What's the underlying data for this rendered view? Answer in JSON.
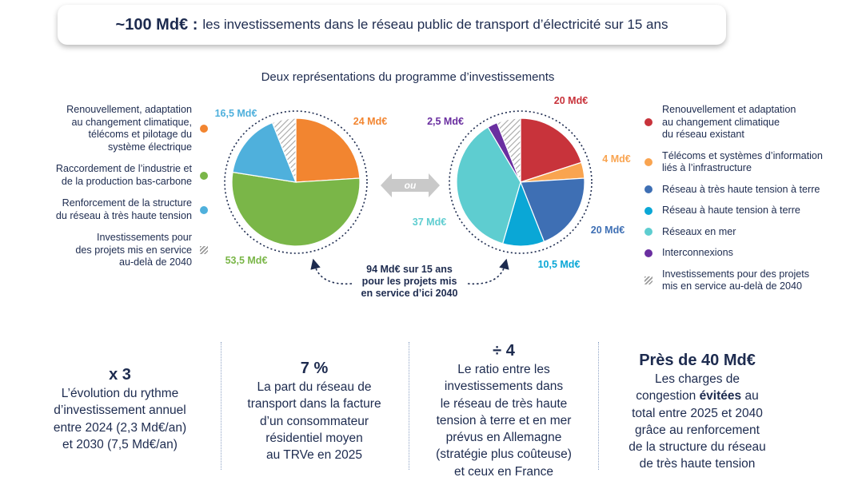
{
  "header": {
    "highlight": "~100 Md€ :",
    "text": "les investissements dans le réseau public de transport d’électricité sur 15 ans"
  },
  "subtitle": "Deux représentations du programme d’investissements",
  "or_label": "ou",
  "center_note": [
    "94 Md€ sur 15 ans",
    "pour les projets mis",
    "en service d’ici 2040"
  ],
  "legend_left": [
    {
      "label": "Renouvellement, adaptation\nau changement climatique,\ntélécoms et pilotage du\nsystème électrique",
      "color": "#f28530"
    },
    {
      "label": "Raccordement de l’industrie et\nde la production bas-carbone",
      "color": "#7ab648"
    },
    {
      "label": "Renforcement de la structure\ndu réseau à très haute tension",
      "color": "#4fb0dc"
    },
    {
      "label": "Investissements pour\ndes projets mis en service\nau-delà de 2040",
      "color": "hatch"
    }
  ],
  "legend_right": [
    {
      "label": "Renouvellement et adaptation\nau changement climatique\ndu réseau existant",
      "color": "#c8333b"
    },
    {
      "label": "Télécoms et systèmes d’information\nliés à l’infrastructure",
      "color": "#f9a450"
    },
    {
      "label": "Réseau à très haute tension à terre",
      "color": "#3e6fb4"
    },
    {
      "label": "Réseau à haute tension à terre",
      "color": "#0aa7d6"
    },
    {
      "label": "Réseaux en mer",
      "color": "#5ecdd0"
    },
    {
      "label": "Interconnexions",
      "color": "#6a2fa0"
    },
    {
      "label": "Investissements pour des projets\nmis en service au-delà de 2040",
      "color": "hatch"
    }
  ],
  "chart_data": [
    {
      "type": "pie",
      "slices": [
        {
          "label": "Renouvellement, adaptation au changement climatique, télécoms et pilotage du système électrique",
          "value": 24,
          "value_label": "24 Md€",
          "color": "#f28530"
        },
        {
          "label": "Raccordement de l’industrie et de la production bas-carbone",
          "value": 53.5,
          "value_label": "53,5 Md€",
          "color": "#7ab648"
        },
        {
          "label": "Renforcement de la structure du réseau à très haute tension",
          "value": 16.5,
          "value_label": "16,5 Md€",
          "color": "#4fb0dc"
        },
        {
          "label": "Investissements pour des projets mis en service au-delà de 2040",
          "value": 6,
          "value_label": "",
          "color": "hatch"
        }
      ]
    },
    {
      "type": "pie",
      "slices": [
        {
          "label": "Renouvellement et adaptation au changement climatique du réseau existant",
          "value": 20,
          "value_label": "20 Md€",
          "color": "#c8333b"
        },
        {
          "label": "Télécoms et systèmes d’information liés à l’infrastructure",
          "value": 4,
          "value_label": "4 Md€",
          "color": "#f9a450"
        },
        {
          "label": "Réseau à très haute tension à terre",
          "value": 20,
          "value_label": "20 Md€",
          "color": "#3e6fb4"
        },
        {
          "label": "Réseau à haute tension à terre",
          "value": 10.5,
          "value_label": "10,5 Md€",
          "color": "#0aa7d6"
        },
        {
          "label": "Réseaux en mer",
          "value": 37,
          "value_label": "37 Md€",
          "color": "#5ecdd0"
        },
        {
          "label": "Interconnexions",
          "value": 2.5,
          "value_label": "2,5 Md€",
          "color": "#6a2fa0"
        },
        {
          "label": "Investissements pour des projets mis en service au-delà de 2040",
          "value": 6,
          "value_label": "",
          "color": "hatch"
        }
      ]
    }
  ],
  "stats": [
    {
      "big": "x 3",
      "lines": [
        "L’évolution du rythme",
        "d’investissement annuel",
        "entre 2024 (2,3 Md€/an)",
        "et 2030 (7,5 Md€/an)"
      ]
    },
    {
      "big": "7 %",
      "lines": [
        "La part du réseau de",
        "transport dans la facture",
        "d’un consommateur",
        "résidentiel moyen",
        "au TRVe en 2025"
      ]
    },
    {
      "big": "÷ 4",
      "lines": [
        "Le ratio entre les",
        "investissements dans",
        "le réseau de très haute",
        "tension à terre et en mer",
        "prévus en Allemagne",
        "(stratégie plus coûteuse)",
        "et ceux en France"
      ]
    },
    {
      "big": "Près de 40 Md€",
      "lines": [
        "Les charges de",
        "congestion @évitées@ au",
        "total entre 2025 et 2040",
        "grâce au renforcement",
        "de la structure du réseau",
        "de très haute tension"
      ]
    }
  ]
}
